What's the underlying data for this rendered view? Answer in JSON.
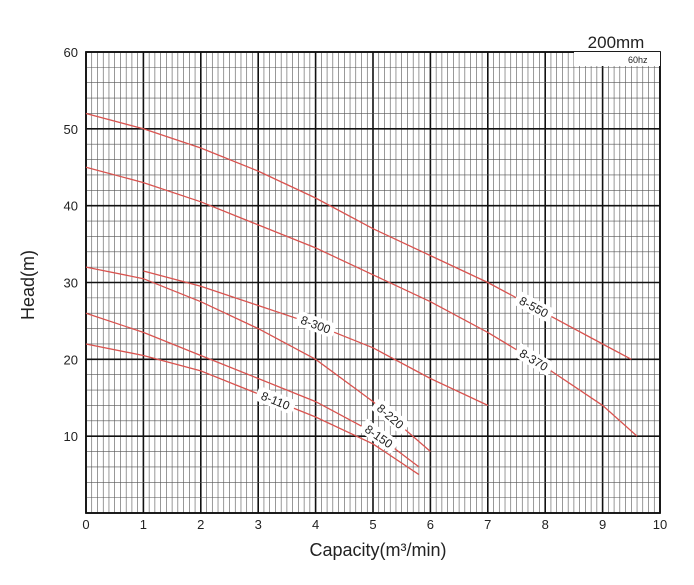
{
  "chart_data": {
    "type": "line",
    "title": "200mm",
    "subtitle": "60hz",
    "xlabel": "Capacity(m³/min)",
    "ylabel": "Head(m)",
    "xlim": [
      0,
      10
    ],
    "ylim": [
      0,
      60
    ],
    "xticks": [
      "0",
      "1",
      "2",
      "3",
      "4",
      "5",
      "6",
      "7",
      "8",
      "9",
      "10"
    ],
    "yticks": [
      "10",
      "20",
      "30",
      "40",
      "50",
      "60"
    ],
    "grid": true,
    "colors": {
      "curve": "#d9534f",
      "grid_major": "#111111",
      "grid_minor": "#555555"
    },
    "series": [
      {
        "name": "8-550",
        "x": [
          0,
          1,
          2,
          3,
          4,
          5,
          6,
          7,
          8,
          9,
          9.5
        ],
        "y": [
          52,
          50,
          47.5,
          44.5,
          41,
          37,
          33.5,
          30,
          26,
          22,
          20
        ]
      },
      {
        "name": "8-370",
        "x": [
          0,
          1,
          2,
          3,
          4,
          5,
          6,
          7,
          8,
          9,
          9.6
        ],
        "y": [
          45,
          43,
          40.5,
          37.5,
          34.5,
          31,
          27.5,
          23.5,
          19,
          14,
          10
        ]
      },
      {
        "name": "8-300",
        "x": [
          1,
          2,
          3,
          4,
          5,
          6,
          7
        ],
        "y": [
          31.5,
          29.5,
          27,
          24.5,
          21.5,
          17.5,
          14
        ]
      },
      {
        "name": "8-220",
        "x": [
          0,
          1,
          2,
          3,
          4,
          5,
          6
        ],
        "y": [
          32,
          30.5,
          27.5,
          24,
          20,
          14.5,
          8
        ]
      },
      {
        "name": "8-150",
        "x": [
          0,
          1,
          2,
          3,
          4,
          5,
          5.8
        ],
        "y": [
          26,
          23.5,
          20.5,
          17.5,
          14.5,
          10.5,
          6
        ]
      },
      {
        "name": "8-110",
        "x": [
          0,
          1,
          2,
          3,
          4,
          5,
          5.8
        ],
        "y": [
          22,
          20.5,
          18.5,
          15.5,
          12.5,
          9,
          5
        ]
      }
    ]
  }
}
